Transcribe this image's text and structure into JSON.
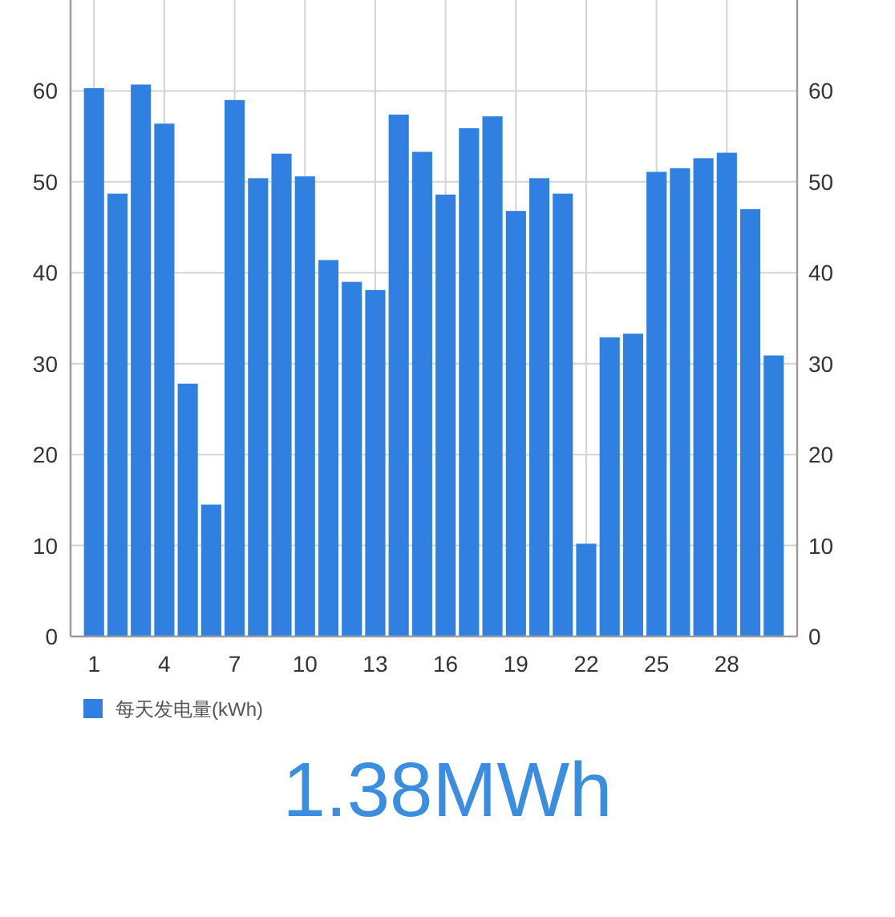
{
  "chart_data": {
    "type": "bar",
    "categories": [
      "1",
      null,
      null,
      "4",
      null,
      null,
      "7",
      null,
      null,
      "10",
      null,
      null,
      "13",
      null,
      null,
      "16",
      null,
      null,
      "19",
      null,
      null,
      "22",
      null,
      null,
      "25",
      null,
      null,
      "28",
      null,
      null
    ],
    "series": [
      {
        "name": "每天发电量(kWh)",
        "color": "#2f80e0",
        "values": [
          60.3,
          48.7,
          60.7,
          56.4,
          27.8,
          14.5,
          59.0,
          50.4,
          53.1,
          50.6,
          41.4,
          39.0,
          38.1,
          57.4,
          53.3,
          48.6,
          55.9,
          57.2,
          46.8,
          50.4,
          48.7,
          10.2,
          32.9,
          33.3,
          51.1,
          51.5,
          52.6,
          53.2,
          47.0,
          30.9
        ]
      }
    ],
    "ylim": [
      0,
      70
    ],
    "yticks": [
      0,
      10,
      20,
      30,
      40,
      50,
      60
    ],
    "y2lim": [
      0,
      70
    ],
    "y2ticks": [
      0,
      10,
      20,
      30,
      40,
      50,
      60
    ],
    "grid": true,
    "legend": "bottom left",
    "annotations": [
      "1.38MWh"
    ]
  }
}
